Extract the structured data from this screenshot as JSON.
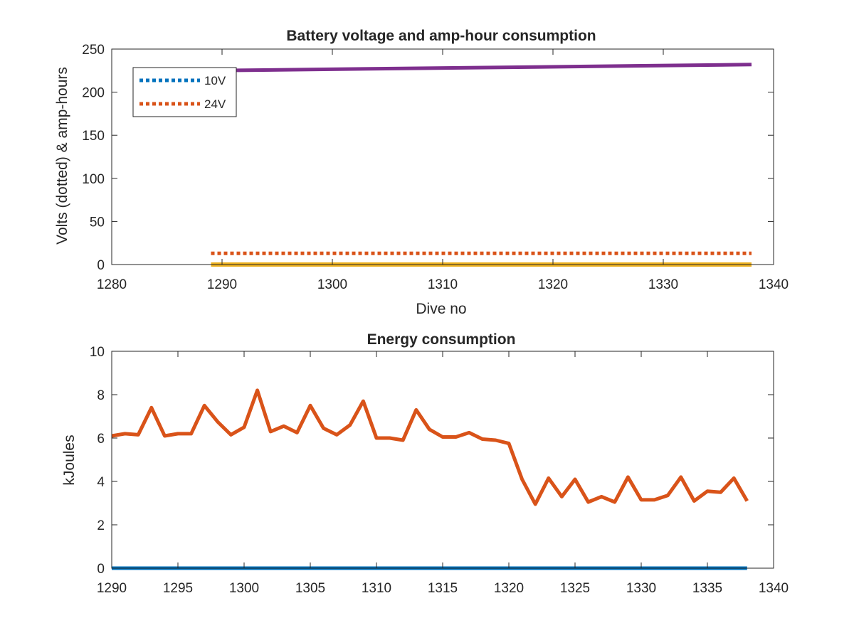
{
  "chart_data": [
    {
      "type": "line",
      "title": "Battery voltage and amp-hour consumption",
      "xlabel": "Dive no",
      "ylabel": "Volts (dotted) & amp-hours",
      "xlim": [
        1280,
        1340
      ],
      "ylim": [
        0,
        250
      ],
      "xticks": [
        1280,
        1290,
        1300,
        1310,
        1320,
        1330,
        1340
      ],
      "yticks": [
        0,
        50,
        100,
        150,
        200,
        250
      ],
      "grid": false,
      "legend_position": "top-left",
      "series": [
        {
          "name": "10V",
          "style": "dotted",
          "color": "#0072BD",
          "x": [
            1289,
            1338
          ],
          "y": [
            0,
            0
          ]
        },
        {
          "name": "24V",
          "style": "dotted",
          "color": "#D95319",
          "x": [
            1289,
            1338
          ],
          "y": [
            13,
            13
          ]
        },
        {
          "style": "solid",
          "color": "#EDB120",
          "x": [
            1289,
            1338
          ],
          "y": [
            0,
            0
          ]
        },
        {
          "style": "solid",
          "color": "#7E2F8E",
          "x": [
            1289,
            1338
          ],
          "y": [
            225,
            232
          ]
        }
      ]
    },
    {
      "type": "line",
      "title": "Energy consumption",
      "xlabel": "",
      "ylabel": "kJoules",
      "xlim": [
        1290,
        1340
      ],
      "ylim": [
        0,
        10
      ],
      "xticks": [
        1290,
        1295,
        1300,
        1305,
        1310,
        1315,
        1320,
        1325,
        1330,
        1335,
        1340
      ],
      "yticks": [
        0,
        2,
        4,
        6,
        8,
        10
      ],
      "grid": false,
      "series": [
        {
          "color": "#D95319",
          "x": [
            1290,
            1291,
            1292,
            1293,
            1294,
            1295,
            1296,
            1297,
            1298,
            1299,
            1300,
            1301,
            1302,
            1303,
            1304,
            1305,
            1306,
            1307,
            1308,
            1309,
            1310,
            1311,
            1312,
            1313,
            1314,
            1315,
            1316,
            1317,
            1318,
            1319,
            1320,
            1321,
            1322,
            1323,
            1324,
            1325,
            1326,
            1327,
            1328,
            1329,
            1330,
            1331,
            1332,
            1333,
            1334,
            1335,
            1336,
            1337,
            1338
          ],
          "y": [
            6.1,
            6.2,
            6.15,
            7.4,
            6.1,
            6.2,
            6.2,
            7.5,
            6.75,
            6.15,
            6.5,
            8.2,
            6.3,
            6.55,
            6.25,
            7.5,
            6.45,
            6.15,
            6.6,
            7.7,
            6.0,
            6.0,
            5.9,
            7.3,
            6.4,
            6.05,
            6.05,
            6.25,
            5.95,
            5.9,
            5.75,
            4.1,
            2.95,
            4.15,
            3.3,
            4.1,
            3.05,
            3.3,
            3.05,
            4.2,
            3.15,
            3.15,
            3.35,
            4.2,
            3.1,
            3.55,
            3.5,
            4.15,
            3.1
          ]
        },
        {
          "color": "#0072BD",
          "x": [
            1290,
            1338
          ],
          "y": [
            0,
            0
          ]
        }
      ]
    }
  ]
}
